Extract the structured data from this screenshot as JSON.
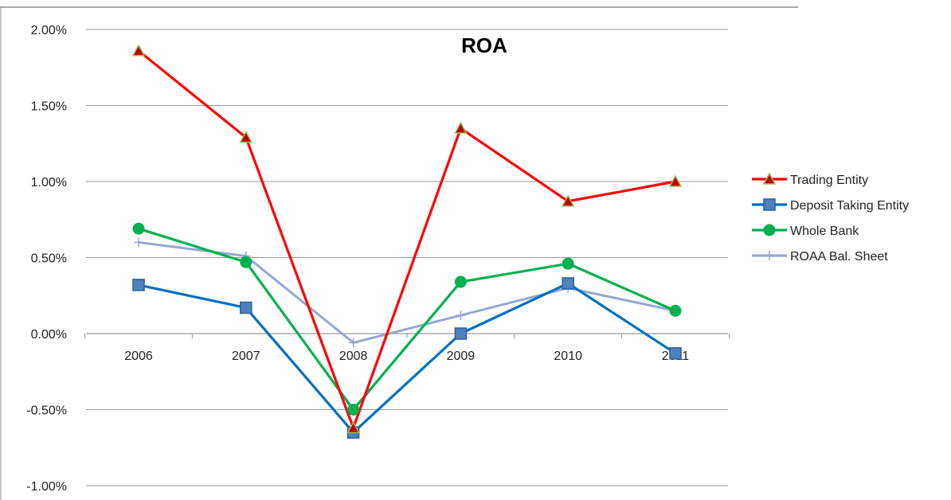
{
  "chart_data": {
    "type": "line",
    "title": "ROA",
    "categories": [
      "2006",
      "2007",
      "2008",
      "2009",
      "2010",
      "2011"
    ],
    "ylim": [
      -1.0,
      2.0
    ],
    "yticks": [
      -1.0,
      -0.5,
      0.0,
      0.5,
      1.0,
      1.5,
      2.0
    ],
    "ytick_labels": [
      "-1.00%",
      "-0.50%",
      "0.00%",
      "0.50%",
      "1.00%",
      "1.50%",
      "2.00%"
    ],
    "y_unit": "%",
    "grid": true,
    "legend_position": "right",
    "series": [
      {
        "name": "Trading Entity",
        "color": "#ff0000",
        "marker": "triangle",
        "marker_fill": "#c00000",
        "marker_stroke": "#9bbb59",
        "values": [
          1.86,
          1.29,
          -0.62,
          1.35,
          0.87,
          1.0
        ]
      },
      {
        "name": "Deposit Taking Entity",
        "color": "#0070c0",
        "marker": "square",
        "marker_fill": "#4f81bd",
        "marker_stroke": "#2c5f9e",
        "values": [
          0.32,
          0.17,
          -0.65,
          0.0,
          0.33,
          -0.13
        ]
      },
      {
        "name": "Whole Bank",
        "color": "#00b050",
        "marker": "circle",
        "marker_fill": "#00b050",
        "marker_stroke": "#00b050",
        "values": [
          0.69,
          0.47,
          -0.5,
          0.34,
          0.46,
          0.15
        ]
      },
      {
        "name": "ROAA Bal. Sheet",
        "color": "#95a8d2",
        "marker": "plus",
        "marker_fill": "#95a8d2",
        "marker_stroke": "#95a8d2",
        "values": [
          0.6,
          0.51,
          -0.06,
          0.12,
          0.3,
          0.15
        ]
      }
    ]
  }
}
